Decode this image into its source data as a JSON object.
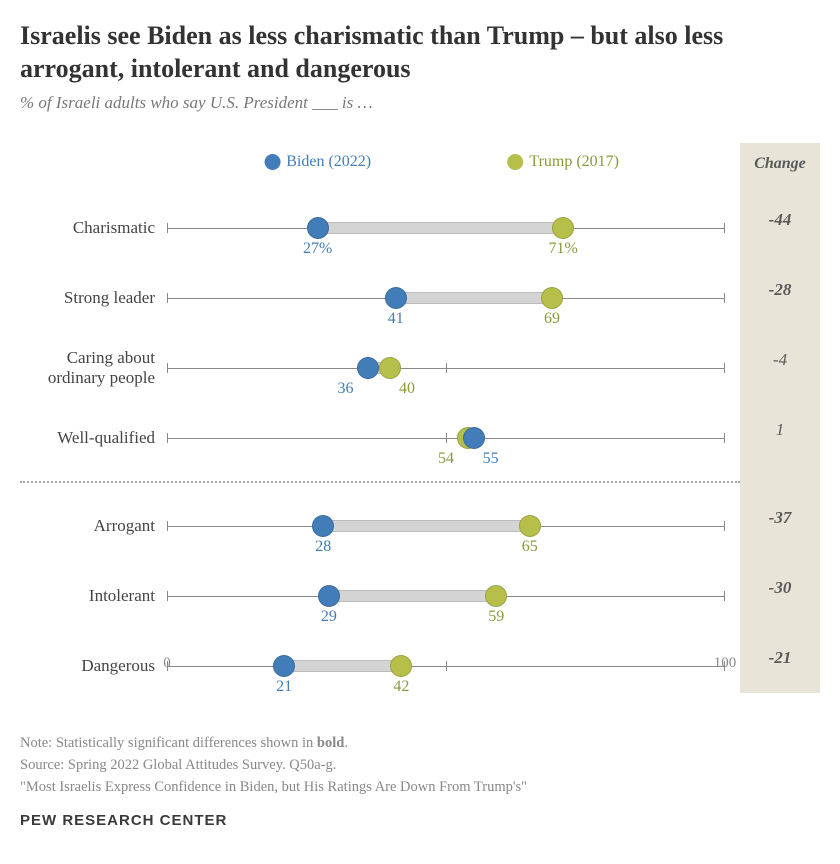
{
  "title": "Israelis see Biden as less charismatic than Trump – but also less arrogant, intolerant and dangerous",
  "subtitle": "% of Israeli adults who say U.S. President ___ is …",
  "change_header": "Change",
  "legend": {
    "biden": {
      "label": "Biden (2022)",
      "color": "#437db9",
      "text_color": "#437db9"
    },
    "trump": {
      "label": "Trump (2017)",
      "color": "#b5bf4a",
      "text_color": "#8a9a3a"
    }
  },
  "groups": [
    {
      "rows": [
        {
          "label": "Charismatic",
          "biden": 27,
          "trump": 71,
          "biden_suffix": "%",
          "trump_suffix": "%",
          "change": -44,
          "bold": true
        },
        {
          "label": "Strong leader",
          "biden": 41,
          "trump": 69,
          "change": -28,
          "bold": true
        },
        {
          "label": "Caring about ordinary people",
          "biden": 36,
          "trump": 40,
          "change": -4,
          "bold": false,
          "biden_label_offset": -4,
          "trump_label_offset": 3
        },
        {
          "label": "Well-qualified",
          "biden": 55,
          "trump": 54,
          "change": 1,
          "bold": false,
          "biden_label_offset": 3,
          "trump_label_offset": -4
        }
      ]
    },
    {
      "rows": [
        {
          "label": "Arrogant",
          "biden": 28,
          "trump": 65,
          "change": -37,
          "bold": true
        },
        {
          "label": "Intolerant",
          "biden": 29,
          "trump": 59,
          "change": -30,
          "bold": true
        },
        {
          "label": "Dangerous",
          "biden": 21,
          "trump": 42,
          "change": -21,
          "bold": true
        }
      ]
    }
  ],
  "scale": {
    "min": 0,
    "max": 100,
    "mid": 50
  },
  "notes": {
    "line1": "Note: Statistically significant differences shown in bold.",
    "line2": "Source: Spring 2022 Global Attitudes Survey. Q50a-g.",
    "line3": "\"Most Israelis Express Confidence in Biden, but His Ratings Are Down From Trump's\""
  },
  "footer": "PEW RESEARCH CENTER"
}
